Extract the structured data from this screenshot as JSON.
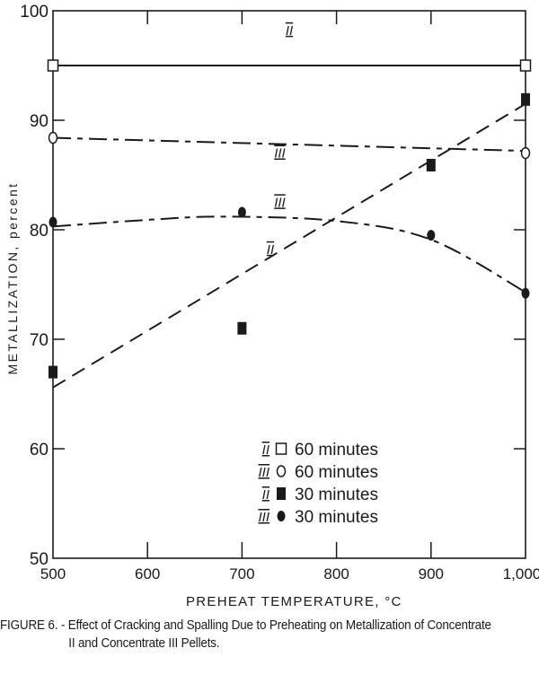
{
  "chart_data": {
    "type": "line",
    "title": "",
    "caption": {
      "line1": "FIGURE 6. - Effect of Cracking and Spalling Due to Preheating on Metallization of Concentrate",
      "line2": "II and Concentrate III Pellets."
    },
    "xlabel": "PREHEAT TEMPERATURE, °C",
    "ylabel": "METALLIZATION, percent",
    "xlim": [
      500,
      1000
    ],
    "ylim": [
      50,
      100
    ],
    "xticks": [
      500,
      600,
      700,
      800,
      900,
      1000
    ],
    "xtick_labels": [
      "500",
      "600",
      "700",
      "800",
      "900",
      "1,000"
    ],
    "yticks": [
      50,
      60,
      70,
      80,
      90,
      100
    ],
    "ytick_labels": [
      "50",
      "60",
      "70",
      "80",
      "90",
      "100"
    ],
    "grid": false,
    "legend_position": "lower center (inside plot)",
    "legend": [
      {
        "concentrate": "II",
        "marker": "open-square",
        "label": "60 minutes"
      },
      {
        "concentrate": "III",
        "marker": "open-circle",
        "label": "60 minutes"
      },
      {
        "concentrate": "II",
        "marker": "filled-square",
        "label": "30 minutes"
      },
      {
        "concentrate": "III",
        "marker": "filled-circle",
        "label": "30 minutes"
      }
    ],
    "series": [
      {
        "name": "II 60 minutes",
        "curve_label": "II",
        "marker": "open-square",
        "line_style": "solid",
        "points": [
          {
            "x": 500,
            "y": 95.0
          },
          {
            "x": 1000,
            "y": 95.0
          }
        ],
        "fit": [
          {
            "x": 500,
            "y": 95.0
          },
          {
            "x": 1000,
            "y": 95.0
          }
        ]
      },
      {
        "name": "III 60 minutes",
        "curve_label": "III",
        "marker": "open-circle",
        "line_style": "dash-dot",
        "points": [
          {
            "x": 500,
            "y": 88.4
          },
          {
            "x": 1000,
            "y": 87.0
          }
        ],
        "fit": [
          {
            "x": 500,
            "y": 88.4
          },
          {
            "x": 1000,
            "y": 87.2
          }
        ]
      },
      {
        "name": "II 30 minutes",
        "curve_label": "II",
        "marker": "filled-square",
        "line_style": "dashed",
        "points": [
          {
            "x": 500,
            "y": 67.0
          },
          {
            "x": 700,
            "y": 71.0
          },
          {
            "x": 900,
            "y": 85.9
          },
          {
            "x": 1000,
            "y": 91.9
          }
        ],
        "fit": [
          {
            "x": 500,
            "y": 65.6
          },
          {
            "x": 1000,
            "y": 91.5
          }
        ]
      },
      {
        "name": "III 30 minutes",
        "curve_label": "III",
        "marker": "filled-circle",
        "line_style": "dash-dot",
        "points": [
          {
            "x": 500,
            "y": 80.7
          },
          {
            "x": 700,
            "y": 81.6
          },
          {
            "x": 900,
            "y": 79.5
          },
          {
            "x": 1000,
            "y": 74.2
          }
        ],
        "fit": [
          {
            "x": 500,
            "y": 80.3
          },
          {
            "x": 600,
            "y": 80.9
          },
          {
            "x": 680,
            "y": 81.2
          },
          {
            "x": 800,
            "y": 80.8
          },
          {
            "x": 900,
            "y": 79.1
          },
          {
            "x": 1000,
            "y": 74.3
          }
        ]
      }
    ],
    "annotations": [
      {
        "text": "II",
        "x": 750,
        "y": 97.8
      },
      {
        "text": "III",
        "x": 740,
        "y": 86.6
      },
      {
        "text": "III",
        "x": 740,
        "y": 82.1
      },
      {
        "text": "II",
        "x": 730,
        "y": 77.8
      }
    ]
  }
}
